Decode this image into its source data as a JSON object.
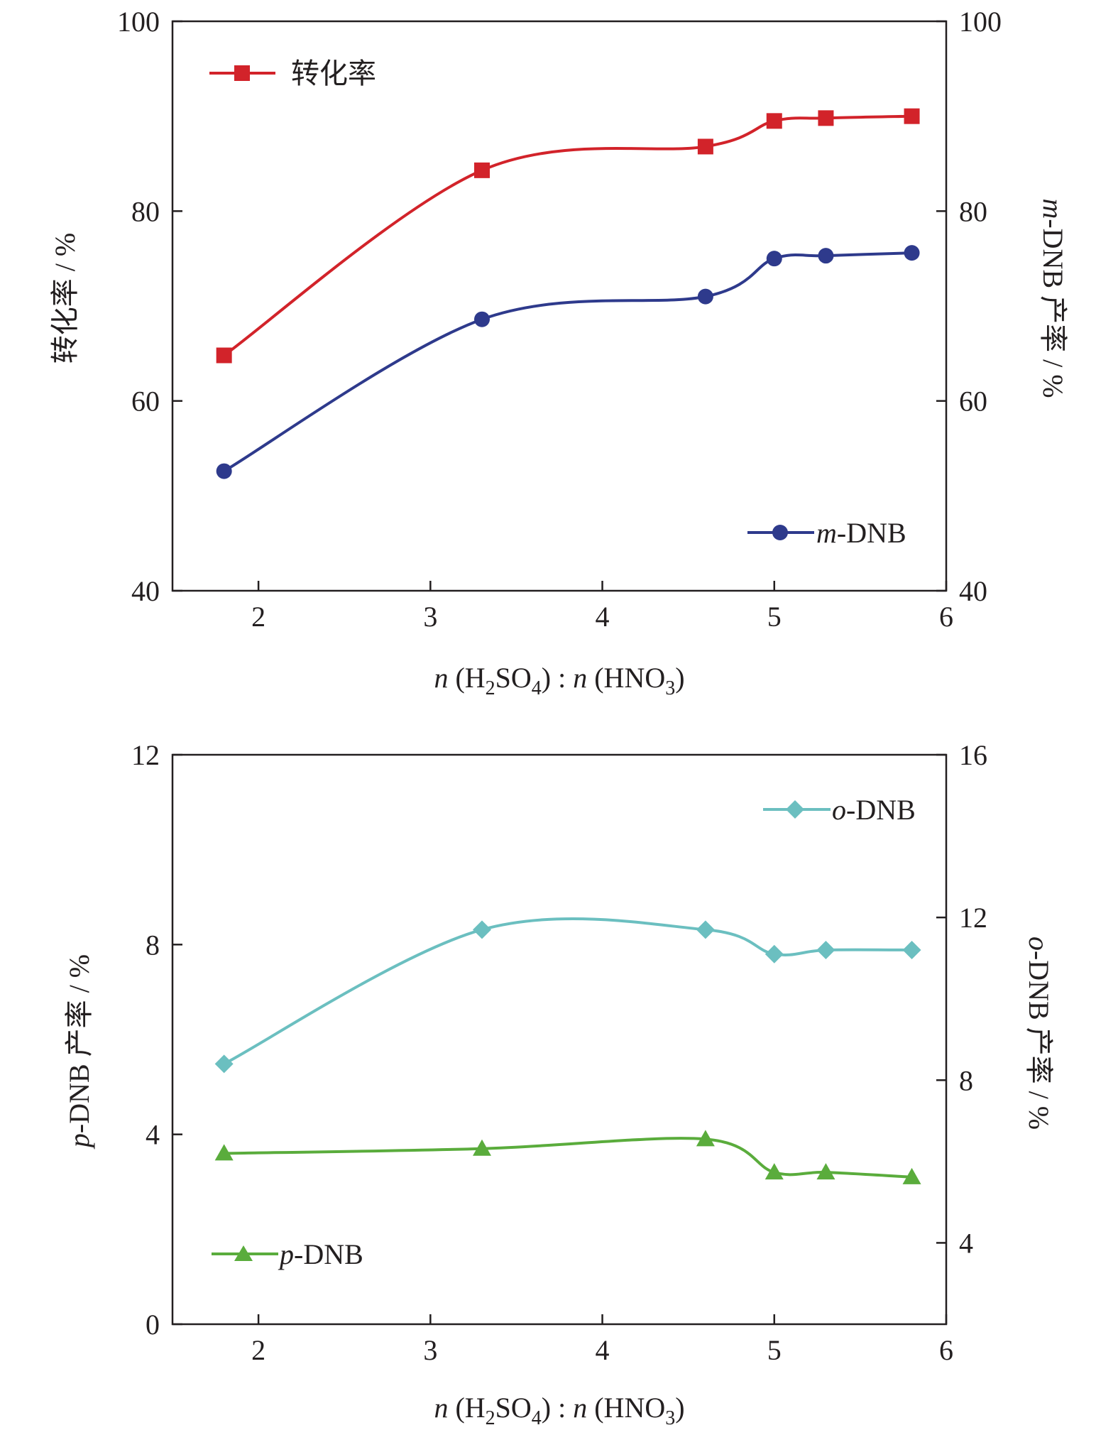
{
  "colors": {
    "conversion": "#d2232a",
    "m_dnb": "#2e3a8c",
    "o_dnb": "#6bbfc0",
    "p_dnb": "#5aac3c",
    "axis": "#231f20"
  },
  "chart_data": [
    {
      "type": "line",
      "x": [
        1.8,
        3.3,
        4.6,
        5.0,
        5.3,
        5.8
      ],
      "xlim": [
        1.5,
        6
      ],
      "xticks": [
        "2",
        "3",
        "4",
        "5",
        "6"
      ],
      "xlabel": {
        "n1": "n",
        "acid1": "(H",
        "sub1": "2",
        "acid1b": "SO",
        "sub2": "4",
        "sep": ") : ",
        "n2": "n",
        "acid2": " (HNO",
        "sub3": "3",
        "close": ")"
      },
      "left_axis": {
        "label": "转化率 / %",
        "ylim": [
          40,
          100
        ],
        "ticks": [
          "40",
          "60",
          "80",
          "100"
        ]
      },
      "right_axis": {
        "label_italic": "m",
        "label_rest": "-DNB 产率 / %",
        "ylim": [
          40,
          100
        ],
        "ticks": [
          "40",
          "60",
          "80",
          "100"
        ]
      },
      "series": [
        {
          "name": "转化率",
          "axis": "left",
          "marker": "square",
          "color_key": "conversion",
          "values": [
            64.8,
            84.3,
            86.8,
            89.5,
            89.8,
            90.0
          ]
        },
        {
          "name_italic": "m",
          "name_rest": "-DNB",
          "axis": "right",
          "marker": "circle",
          "color_key": "m_dnb",
          "values": [
            52.6,
            68.6,
            71.0,
            75.0,
            75.3,
            75.6
          ]
        }
      ],
      "legends": [
        {
          "series": 0,
          "position": "top-left"
        },
        {
          "series": 1,
          "position": "bottom-right"
        }
      ]
    },
    {
      "type": "line",
      "x": [
        1.8,
        3.3,
        4.6,
        5.0,
        5.3,
        5.8
      ],
      "xlim": [
        1.5,
        6
      ],
      "xticks": [
        "2",
        "3",
        "4",
        "5",
        "6"
      ],
      "xlabel": {
        "n1": "n",
        "acid1": "(H",
        "sub1": "2",
        "acid1b": "SO",
        "sub2": "4",
        "sep": ") : ",
        "n2": "n",
        "acid2": " (HNO",
        "sub3": "3",
        "close": ")"
      },
      "left_axis": {
        "label_italic": "p",
        "label_rest": "-DNB 产率 / %",
        "ylim": [
          0,
          12
        ],
        "ticks": [
          "0",
          "4",
          "8",
          "12"
        ]
      },
      "right_axis": {
        "label_italic": "o",
        "label_rest": "-DNB 产率 / %",
        "ylim": [
          2,
          16
        ],
        "ticks": [
          "4",
          "8",
          "12",
          "16"
        ]
      },
      "series": [
        {
          "name_italic": "o",
          "name_rest": "-DNB",
          "axis": "right",
          "marker": "diamond",
          "color_key": "o_dnb",
          "values": [
            8.4,
            11.7,
            11.7,
            11.1,
            11.2,
            11.2
          ]
        },
        {
          "name_italic": "p",
          "name_rest": "-DNB",
          "axis": "left",
          "marker": "triangle",
          "color_key": "p_dnb",
          "values": [
            3.6,
            3.7,
            3.9,
            3.2,
            3.2,
            3.1
          ]
        }
      ],
      "legends": [
        {
          "series": 0,
          "position": "top-right"
        },
        {
          "series": 1,
          "position": "bottom-left"
        }
      ]
    }
  ]
}
